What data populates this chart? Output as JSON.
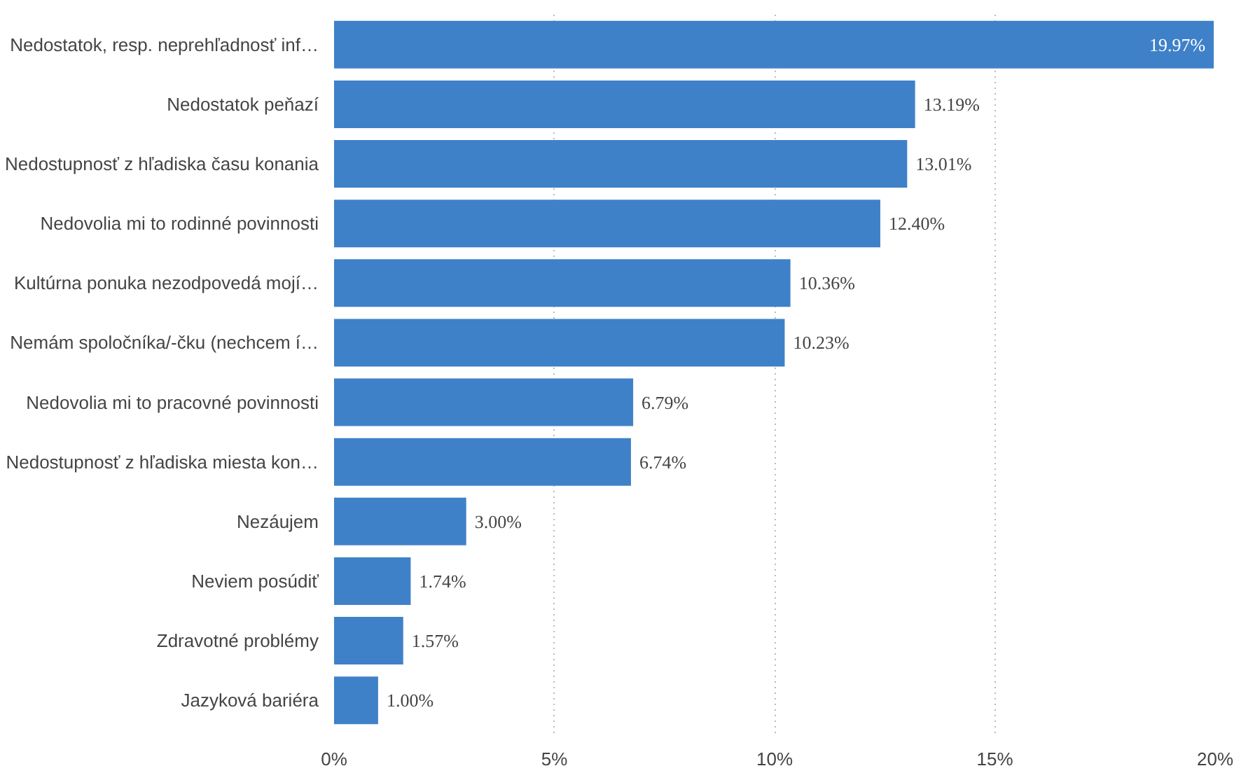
{
  "chart_data": {
    "type": "bar",
    "orientation": "horizontal",
    "categories": [
      "Nedostatok, resp. neprehľadnosť inf…",
      "Nedostatok peňazí",
      "Nedostupnosť z hľadiska času konania",
      "Nedovolia mi to rodinné povinnosti",
      "Kultúrna ponuka nezodpovedá mojí…",
      "Nemám spoločníka/-čku (nechcem í…",
      "Nedovolia mi to pracovné povinnosti",
      "Nedostupnosť z hľadiska miesta kon…",
      "Nezáujem",
      "Neviem posúdiť",
      "Zdravotné problémy",
      "Jazyková bariéra"
    ],
    "values": [
      19.97,
      13.19,
      13.01,
      12.4,
      10.36,
      10.23,
      6.79,
      6.74,
      3.0,
      1.74,
      1.57,
      1.0
    ],
    "value_labels": [
      "19.97%",
      "13.19%",
      "13.01%",
      "12.40%",
      "10.36%",
      "10.23%",
      "6.79%",
      "6.74%",
      "3.00%",
      "1.74%",
      "1.57%",
      "1.00%"
    ],
    "color": "#3f81c8",
    "xlim": [
      0,
      20
    ],
    "xticks": [
      {
        "value": 0,
        "label": "0%"
      },
      {
        "value": 5,
        "label": "5%"
      },
      {
        "value": 10,
        "label": "10%"
      },
      {
        "value": 15,
        "label": "15%"
      },
      {
        "value": 20,
        "label": "20%"
      }
    ],
    "grid": "x"
  }
}
